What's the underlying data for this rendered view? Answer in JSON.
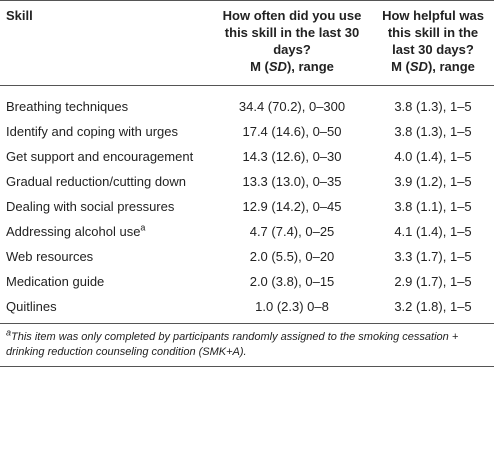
{
  "header": {
    "skill": "Skill",
    "often": {
      "question": "How often did you use this skill in the last 30 days?",
      "stat_before": "M (",
      "stat_italic": "SD",
      "stat_after": "), range"
    },
    "helpful": {
      "question": "How helpful was this skill in the last 30 days?",
      "stat_before": "M (",
      "stat_italic": "SD",
      "stat_after": "), range"
    }
  },
  "table": {
    "rows": [
      {
        "skill": "Breathing techniques",
        "often": "34.4 (70.2), 0–300",
        "helpful": "3.8 (1.3), 1–5"
      },
      {
        "skill": "Identify and coping with urges",
        "often": "17.4 (14.6), 0–50",
        "helpful": "3.8 (1.3), 1–5"
      },
      {
        "skill": "Get support and encouragement",
        "often": "14.3 (12.6), 0–30",
        "helpful": "4.0 (1.4), 1–5"
      },
      {
        "skill": "Gradual reduction/cutting down",
        "often": "13.3 (13.0), 0–35",
        "helpful": "3.9 (1.2), 1–5"
      },
      {
        "skill": "Dealing with social pressures",
        "often": "12.9 (14.2), 0–45",
        "helpful": "3.8 (1.1), 1–5"
      },
      {
        "skill": "Addressing alcohol use",
        "skill_note": "a",
        "often": "4.7 (7.4), 0–25",
        "helpful": "4.1 (1.4), 1–5"
      },
      {
        "skill": "Web resources",
        "often": "2.0 (5.5), 0–20",
        "helpful": "3.3 (1.7), 1–5"
      },
      {
        "skill": "Medication guide",
        "often": "2.0 (3.8), 0–15",
        "helpful": "2.9 (1.7), 1–5"
      },
      {
        "skill": "Quitlines",
        "often": "1.0 (2.3) 0–8",
        "helpful": "3.2 (1.8), 1–5"
      }
    ]
  },
  "footnote": {
    "marker": "a",
    "text": "This item was only completed by participants randomly assigned to the smoking cessation + drinking reduction counseling condition (SMK+A)."
  }
}
